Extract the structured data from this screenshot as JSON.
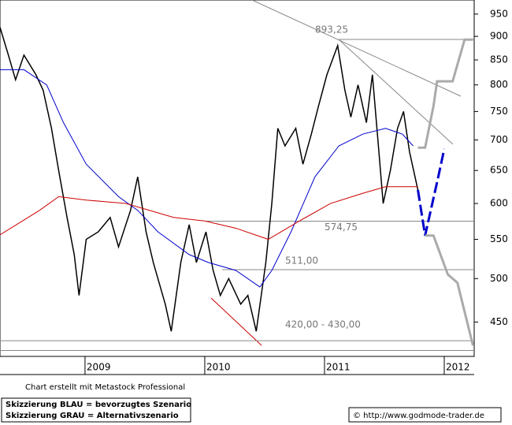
{
  "chart_data": {
    "type": "line",
    "y_scale": "log",
    "xlim": [
      2008.29,
      2012.25
    ],
    "ylim": [
      414,
      983
    ],
    "xticks": [
      2009,
      2010,
      2011,
      2012
    ],
    "yticks": [
      450,
      500,
      550,
      600,
      650,
      700,
      750,
      800,
      850,
      900,
      950
    ],
    "series": [
      {
        "color": "#000000",
        "x": [
          2008.29,
          2008.36,
          2008.42,
          2008.49,
          2008.59,
          2008.65,
          2008.72,
          2008.78,
          2008.85,
          2008.91,
          2008.95,
          2009.01,
          2009.11,
          2009.21,
          2009.28,
          2009.38,
          2009.44,
          2009.51,
          2009.57,
          2009.67,
          2009.72,
          2009.8,
          2009.87,
          2009.93,
          2010.01,
          2010.07,
          2010.13,
          2010.2,
          2010.3,
          2010.36,
          2010.43,
          2010.51,
          2010.56,
          2010.61,
          2010.67,
          2010.76,
          2010.82,
          2010.89,
          2010.95,
          2011.02,
          2011.11,
          2011.17,
          2011.22,
          2011.28,
          2011.35,
          2011.4,
          2011.45,
          2011.49,
          2011.55,
          2011.61,
          2011.66,
          2011.71,
          2011.78
        ],
        "values": [
          920,
          860,
          810,
          860,
          820,
          790,
          720,
          650,
          580,
          530,
          480,
          550,
          560,
          580,
          540,
          590,
          640,
          560,
          520,
          470,
          440,
          520,
          570,
          520,
          560,
          510,
          480,
          500,
          470,
          480,
          440,
          520,
          600,
          720,
          690,
          720,
          660,
          710,
          760,
          820,
          880,
          790,
          740,
          800,
          730,
          820,
          690,
          600,
          650,
          720,
          750,
          680,
          620
        ]
      },
      {
        "color": "#0000cc",
        "x": [
          2008.29,
          2008.49,
          2008.68,
          2008.82,
          2009.01,
          2009.28,
          2009.44,
          2009.61,
          2009.87,
          2010.03,
          2010.26,
          2010.46,
          2010.56,
          2010.72,
          2010.92,
          2011.12,
          2011.32,
          2011.51,
          2011.65,
          2011.74
        ],
        "values": [
          830,
          830,
          800,
          730,
          660,
          610,
          590,
          560,
          530,
          520,
          510,
          490,
          510,
          560,
          640,
          690,
          710,
          720,
          710,
          690
        ]
      },
      {
        "color": "#cc0000",
        "x": [
          2008.29,
          2008.62,
          2008.78,
          2009.01,
          2009.34,
          2009.74,
          2010.0,
          2010.26,
          2010.53,
          2010.79,
          2011.05,
          2011.32,
          2011.51,
          2011.78
        ],
        "values": [
          556,
          590,
          610,
          605,
          600,
          580,
          575,
          565,
          550,
          575,
          600,
          615,
          625,
          625
        ]
      }
    ],
    "scenarios": [
      {
        "color": "#0000cc",
        "x": [
          2011.78,
          2011.84,
          2011.95,
          2012.0
        ],
        "values": [
          620,
          555,
          640,
          685
        ]
      },
      {
        "color": "#aaaaaa",
        "x": [
          2011.78,
          2011.84,
          2011.91,
          2011.94,
          2012.07,
          2012.17,
          2012.24
        ],
        "values": [
          687,
          687,
          760,
          807,
          807,
          893,
          893
        ]
      },
      {
        "color": "#aaaaaa",
        "x": [
          2011.84,
          2011.91,
          2012.03,
          2012.11,
          2012.24
        ],
        "values": [
          555,
          555,
          505,
          495,
          425
        ]
      }
    ],
    "levels": [
      {
        "value": 893.25,
        "label": "893,25"
      },
      {
        "value": 574.75,
        "label": "574,75"
      },
      {
        "value": 511,
        "label": "511,00"
      }
    ],
    "zone": {
      "values": [
        420,
        430
      ],
      "label": "420,00 - 430,00"
    },
    "credit": "Chart erstellt mit Metastock Professional",
    "legend": [
      "Skizzierung BLAU = bevorzugtes Szenario",
      "Skizzierung GRAU = Alternativszenario"
    ],
    "source": "© http://www.godmode-trader.de"
  }
}
